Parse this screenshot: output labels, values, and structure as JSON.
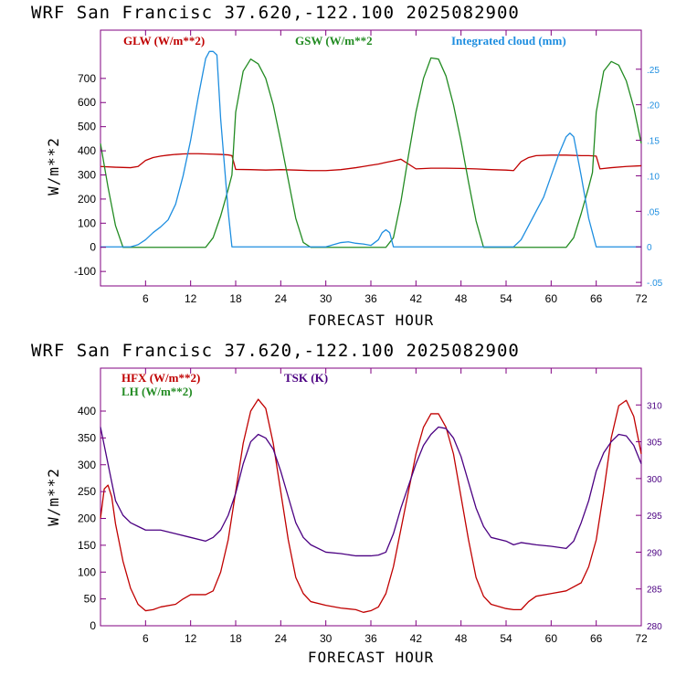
{
  "colors": {
    "frame": "#800080",
    "axis": "#000000",
    "red": "#c00000",
    "green": "#228b22",
    "blue": "#1e8ee0",
    "purple": "#4b0082"
  },
  "chart_data": [
    {
      "type": "line",
      "title": "WRF   San Francisc  37.620,-122.100  2025082900",
      "xlabel": "FORECAST HOUR",
      "ylabel": "W/m**2",
      "xlim": [
        0,
        72
      ],
      "ylim": [
        -160,
        900
      ],
      "y2lim": [
        -0.055,
        0.305
      ],
      "xticks": [
        "6",
        "12",
        "18",
        "24",
        "30",
        "36",
        "42",
        "48",
        "54",
        "60",
        "66",
        "72"
      ],
      "yticks": [
        "-100",
        "0",
        "100",
        "200",
        "300",
        "400",
        "500",
        "600",
        "700"
      ],
      "y2ticks": [
        "-.05",
        "0",
        ".05",
        ".10",
        ".15",
        ".20",
        ".25"
      ],
      "series": [
        {
          "name": "GLW (W/m**2)",
          "color": "red",
          "axis": "left",
          "x": [
            0,
            2,
            4,
            5,
            6,
            7,
            8,
            9,
            10,
            11,
            12,
            13,
            14,
            15,
            16,
            17,
            17.5,
            18,
            20,
            22,
            24,
            26,
            28,
            30,
            32,
            34,
            35,
            36,
            37,
            38,
            39,
            40,
            42,
            44,
            46,
            48,
            50,
            52,
            54,
            55,
            56,
            57,
            58,
            60,
            62,
            64,
            65,
            66,
            66.5,
            68,
            70,
            72
          ],
          "y": [
            335,
            332,
            330,
            335,
            360,
            372,
            378,
            382,
            385,
            387,
            388,
            388,
            387,
            386,
            385,
            383,
            380,
            323,
            322,
            320,
            322,
            320,
            318,
            318,
            322,
            330,
            335,
            340,
            345,
            352,
            358,
            365,
            325,
            328,
            328,
            327,
            325,
            322,
            320,
            318,
            355,
            372,
            380,
            382,
            382,
            380,
            380,
            378,
            325,
            330,
            335,
            338
          ]
        },
        {
          "name": "GSW (W/m**2",
          "color": "green",
          "axis": "left",
          "x": [
            0,
            1,
            2,
            3,
            14,
            15,
            16,
            17,
            17.5,
            18,
            19,
            20,
            21,
            22,
            23,
            24,
            25,
            26,
            27,
            28,
            38,
            39,
            40,
            41,
            42,
            43,
            44,
            45,
            46,
            47,
            48,
            49,
            50,
            51,
            62,
            63,
            64,
            65,
            65.5,
            66,
            67,
            68,
            69,
            70,
            71,
            72
          ],
          "y": [
            430,
            250,
            90,
            0,
            0,
            40,
            130,
            240,
            300,
            560,
            730,
            780,
            760,
            700,
            590,
            440,
            280,
            120,
            20,
            0,
            0,
            40,
            190,
            380,
            560,
            700,
            785,
            780,
            710,
            590,
            440,
            270,
            110,
            0,
            0,
            40,
            140,
            250,
            310,
            560,
            730,
            770,
            755,
            690,
            580,
            430
          ]
        },
        {
          "name": "Integrated cloud (mm)",
          "color": "blue",
          "axis": "right",
          "x": [
            0,
            3.5,
            4,
            5,
            6,
            7,
            8,
            9,
            10,
            11,
            12,
            13,
            14,
            14.5,
            15,
            15.5,
            16,
            17,
            17.5,
            30,
            31,
            32,
            33,
            34,
            35,
            36,
            37,
            37.5,
            38,
            38.5,
            39,
            55,
            56,
            57,
            58,
            59,
            60,
            61,
            62,
            62.5,
            63,
            64,
            65,
            66,
            72
          ],
          "y": [
            0,
            0,
            0,
            0.003,
            0.01,
            0.02,
            0.028,
            0.038,
            0.06,
            0.1,
            0.15,
            0.21,
            0.265,
            0.275,
            0.275,
            0.27,
            0.18,
            0.05,
            0,
            0,
            0.003,
            0.006,
            0.007,
            0.005,
            0.004,
            0.002,
            0.01,
            0.02,
            0.024,
            0.02,
            0,
            0,
            0.01,
            0.03,
            0.05,
            0.07,
            0.1,
            0.13,
            0.155,
            0.16,
            0.155,
            0.1,
            0.04,
            0,
            0
          ]
        }
      ],
      "legend": [
        "GLW (W/m**2)",
        "GSW (W/m**2",
        "Integrated cloud (mm)"
      ]
    },
    {
      "type": "line",
      "title": "WRF   San Francisc  37.620,-122.100  2025082900",
      "xlabel": "FORECAST HOUR",
      "ylabel": "W/m**2",
      "xlim": [
        0,
        72
      ],
      "ylim": [
        0,
        480
      ],
      "y2lim": [
        280,
        315
      ],
      "xticks": [
        "6",
        "12",
        "18",
        "24",
        "30",
        "36",
        "42",
        "48",
        "54",
        "60",
        "66",
        "72"
      ],
      "yticks": [
        "0",
        "50",
        "100",
        "150",
        "200",
        "250",
        "300",
        "350",
        "400"
      ],
      "y2ticks": [
        "280",
        "285",
        "290",
        "295",
        "300",
        "305",
        "310"
      ],
      "series": [
        {
          "name": "HFX (W/m**2)",
          "color": "red",
          "axis": "left",
          "x": [
            0,
            0.5,
            1,
            1.5,
            2,
            3,
            4,
            5,
            6,
            7,
            8,
            10,
            11,
            12,
            14,
            15,
            16,
            17,
            18,
            19,
            20,
            21,
            22,
            23,
            24,
            25,
            26,
            27,
            28,
            30,
            32,
            34,
            35,
            36,
            37,
            38,
            39,
            40,
            41,
            42,
            43,
            44,
            45,
            46,
            47,
            48,
            49,
            50,
            51,
            52,
            54,
            55,
            56,
            57,
            58,
            60,
            62,
            64,
            65,
            66,
            67,
            68,
            69,
            70,
            71,
            72
          ],
          "y": [
            200,
            255,
            262,
            240,
            190,
            120,
            70,
            40,
            28,
            30,
            35,
            40,
            50,
            58,
            58,
            65,
            100,
            160,
            250,
            340,
            400,
            422,
            405,
            340,
            250,
            160,
            90,
            60,
            45,
            38,
            33,
            30,
            25,
            28,
            35,
            60,
            110,
            180,
            250,
            320,
            370,
            395,
            395,
            370,
            320,
            240,
            160,
            90,
            55,
            40,
            32,
            30,
            30,
            45,
            55,
            60,
            65,
            80,
            110,
            160,
            250,
            350,
            410,
            420,
            390,
            320
          ]
        },
        {
          "name": "LH  (W/m**2)",
          "color": "green",
          "axis": "left",
          "x": [],
          "y": []
        },
        {
          "name": "TSK (K)",
          "color": "purple",
          "axis": "right",
          "x": [
            0,
            1,
            2,
            3,
            4,
            5,
            6,
            8,
            10,
            12,
            14,
            15,
            16,
            17,
            18,
            19,
            20,
            21,
            22,
            23,
            24,
            25,
            26,
            27,
            28,
            30,
            32,
            34,
            36,
            37,
            38,
            39,
            40,
            41,
            42,
            43,
            44,
            45,
            46,
            47,
            48,
            49,
            50,
            51,
            52,
            54,
            55,
            56,
            58,
            60,
            62,
            63,
            64,
            65,
            66,
            67,
            68,
            69,
            70,
            71,
            72
          ],
          "y": [
            307,
            302,
            297,
            295,
            294,
            293.5,
            293,
            293,
            292.5,
            292,
            291.5,
            292,
            293,
            295,
            298,
            302,
            305,
            306,
            305.5,
            304,
            301,
            297.5,
            294,
            292,
            291,
            290,
            289.8,
            289.5,
            289.5,
            289.6,
            290,
            292.5,
            296,
            299,
            302,
            304.5,
            306,
            307,
            306.8,
            305.5,
            303,
            299.5,
            296,
            293.5,
            292,
            291.5,
            291,
            291.3,
            291,
            290.8,
            290.5,
            291.5,
            294,
            297,
            301,
            303.5,
            305,
            306,
            305.8,
            304.5,
            302
          ]
        }
      ],
      "legend": [
        "HFX (W/m**2)",
        "LH  (W/m**2)",
        "TSK (K)"
      ]
    }
  ]
}
